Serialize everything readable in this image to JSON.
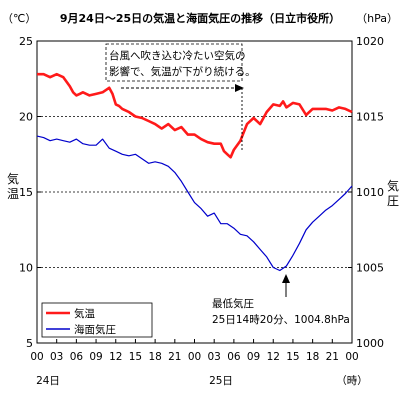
{
  "chart_data": {
    "type": "line",
    "title": "9月24日～25日の気温と海面気圧の推移（日立市役所）",
    "left_unit": "（℃）",
    "right_unit": "（hPa）",
    "left_axis_label": [
      "気",
      "温"
    ],
    "right_axis_label": [
      "気",
      "圧"
    ],
    "x_unit": "（時）",
    "x_tick_labels": [
      "00",
      "03",
      "06",
      "09",
      "12",
      "15",
      "18",
      "21",
      "00",
      "03",
      "06",
      "09",
      "12",
      "15",
      "18",
      "21",
      "00"
    ],
    "x_ticks_hours": [
      0,
      3,
      6,
      9,
      12,
      15,
      18,
      21,
      24,
      27,
      30,
      33,
      36,
      39,
      42,
      45,
      48
    ],
    "day_labels": [
      {
        "label": "24日",
        "hour": 3
      },
      {
        "label": "25日",
        "hour": 28
      }
    ],
    "x_range_hours": [
      0,
      48
    ],
    "y_left": {
      "range": [
        5,
        25
      ],
      "ticks": [
        5,
        10,
        15,
        20,
        25
      ]
    },
    "y_right": {
      "range": [
        1000,
        1020
      ],
      "ticks": [
        1000,
        1005,
        1010,
        1015,
        1020
      ]
    },
    "gridlines_dashed_at": [
      10,
      15,
      20
    ],
    "legend": {
      "position": "bottom-left"
    },
    "series": [
      {
        "name": "気温",
        "color": "#ff1a1a",
        "axis": "left",
        "x": [
          0,
          1,
          2,
          3,
          4,
          5,
          5.5,
          6,
          6.5,
          7,
          8,
          9,
          10,
          11,
          11.5,
          12,
          12.5,
          13,
          14,
          15,
          16,
          17,
          18,
          19,
          20,
          21,
          22,
          23,
          24,
          25,
          26,
          27,
          28,
          28.5,
          29,
          29.5,
          30,
          31,
          32,
          33,
          34,
          35,
          36,
          37,
          37.5,
          38,
          39,
          40,
          41,
          42,
          43,
          44,
          45,
          46,
          47,
          48
        ],
        "values": [
          22.8,
          22.8,
          22.6,
          22.8,
          22.6,
          22.0,
          21.6,
          21.4,
          21.5,
          21.6,
          21.4,
          21.5,
          21.6,
          21.9,
          21.5,
          20.8,
          20.7,
          20.5,
          20.3,
          20.0,
          19.9,
          19.7,
          19.5,
          19.2,
          19.5,
          19.1,
          19.3,
          18.8,
          18.8,
          18.5,
          18.3,
          18.2,
          18.2,
          17.7,
          17.5,
          17.3,
          17.8,
          18.4,
          19.5,
          19.9,
          19.5,
          20.3,
          20.8,
          20.7,
          21.0,
          20.6,
          20.9,
          20.8,
          20.1,
          20.5,
          20.5,
          20.5,
          20.4,
          20.6,
          20.5,
          20.3
        ]
      },
      {
        "name": "海面気圧",
        "color": "#0000cc",
        "axis": "right",
        "x": [
          0,
          1,
          2,
          3,
          4,
          5,
          6,
          7,
          8,
          9,
          10,
          11,
          12,
          13,
          14,
          15,
          16,
          17,
          18,
          19,
          20,
          21,
          22,
          23,
          24,
          25,
          26,
          27,
          28,
          29,
          30,
          31,
          32,
          33,
          34,
          35,
          36,
          37,
          38,
          39,
          40,
          41,
          42,
          43,
          44,
          45,
          46,
          47,
          48
        ],
        "values": [
          1013.7,
          1013.6,
          1013.4,
          1013.5,
          1013.4,
          1013.3,
          1013.5,
          1013.2,
          1013.1,
          1013.1,
          1013.5,
          1012.9,
          1012.7,
          1012.5,
          1012.4,
          1012.5,
          1012.2,
          1011.9,
          1012.0,
          1011.9,
          1011.7,
          1011.3,
          1010.7,
          1010.0,
          1009.3,
          1008.9,
          1008.4,
          1008.6,
          1007.9,
          1007.9,
          1007.6,
          1007.2,
          1007.1,
          1006.7,
          1006.2,
          1005.7,
          1005.0,
          1004.8,
          1005.1,
          1005.8,
          1006.6,
          1007.5,
          1008.0,
          1008.4,
          1008.8,
          1009.1,
          1009.5,
          1009.9,
          1010.4
        ]
      }
    ],
    "annotations": [
      {
        "lines": [
          "台風へ吹き込む冷たい空気の",
          "影響で、気温が下がり続ける。"
        ],
        "arrow": "right",
        "from_hour": 12,
        "to_hour": 30
      },
      {
        "lines": [
          "最低気圧",
          "25日14時20分、1004.8hPa"
        ],
        "arrow": "up",
        "at_hour": 38.3,
        "value": 1004.8
      }
    ]
  }
}
